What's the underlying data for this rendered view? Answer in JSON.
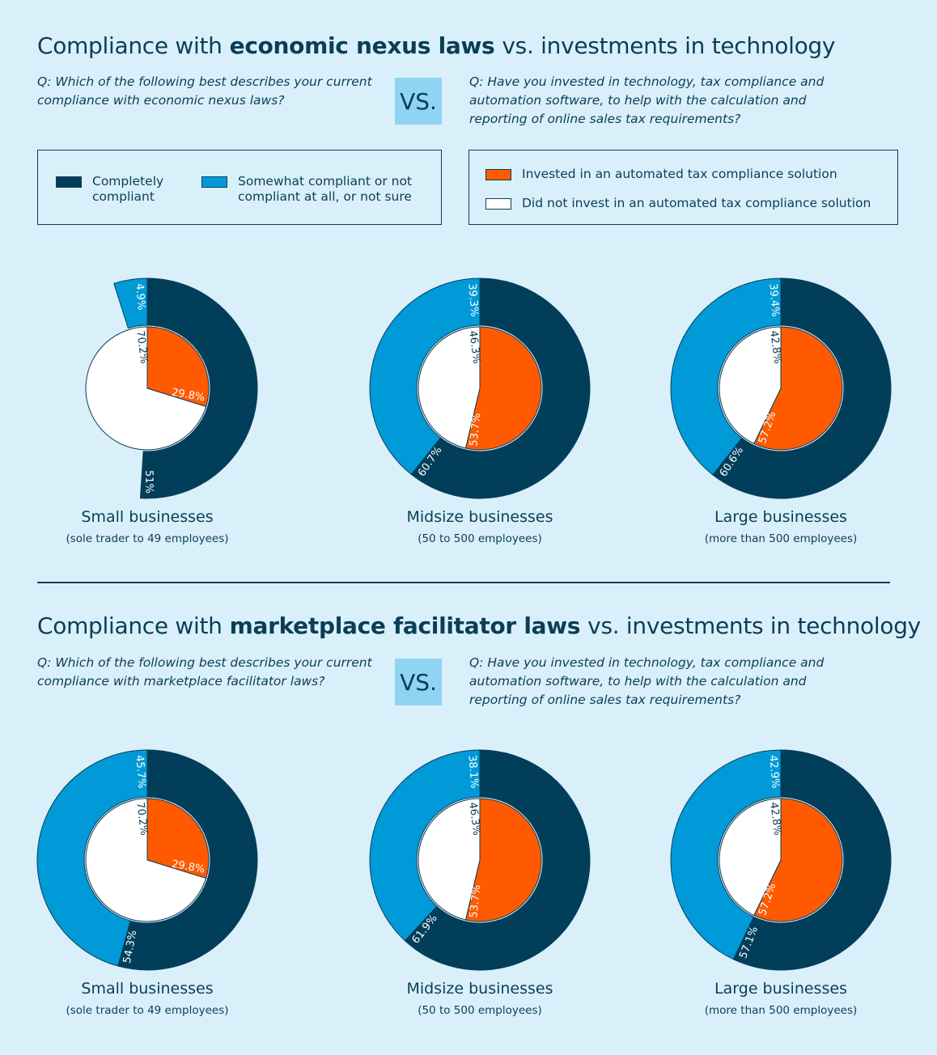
{
  "sections": [
    {
      "title": [
        "Compliance with",
        "economic nexus laws",
        "vs. investments in technology"
      ],
      "question_left": "Q: Which of the following best describes your current compliance with economic nexus laws?",
      "vs": "VS.",
      "question_right": "Q: Have you invested in technology, tax compliance and automation software, to help with the calculation and reporting of online sales tax requirements?"
    },
    {
      "title": [
        "Compliance with",
        "marketplace facilitator laws",
        "vs. investments in technology"
      ],
      "question_left": "Q: Which of the following best describes your current compliance with marketplace facilitator laws?",
      "vs": "VS.",
      "question_right": "Q: Have you invested in technology, tax compliance and automation software, to help with the calculation and reporting of online sales tax requirements?"
    }
  ],
  "legend": {
    "outer": [
      {
        "name": "Completely compliant",
        "color": "#003e5a"
      },
      {
        "name": "Somewhat compliant or not compliant at all, or not sure",
        "color": "#009ad8"
      }
    ],
    "inner": [
      {
        "name": "Invested in an automated tax compliance solution",
        "color": "#ff5a00"
      },
      {
        "name": "Did not invest in an automated tax compliance solution",
        "color": "#ffffff"
      }
    ]
  },
  "chart_data": [
    {
      "type": "donut",
      "title": "Small businesses",
      "subtitle": "(sole trader to 49 employees)",
      "outer": {
        "values": [
          51,
          4.9
        ],
        "value_labels": [
          "51%",
          "4.9%"
        ]
      },
      "inner": {
        "values": [
          29.8,
          70.2
        ],
        "value_labels": [
          "29.8%",
          "70.2%"
        ]
      }
    },
    {
      "type": "donut",
      "title": "Midsize businesses",
      "subtitle": "(50 to 500 employees)",
      "outer": {
        "values": [
          60.7,
          39.3
        ],
        "value_labels": [
          "60.7%",
          "39.3%"
        ]
      },
      "inner": {
        "values": [
          53.7,
          46.3
        ],
        "value_labels": [
          "53.7%",
          "46.3%"
        ]
      }
    },
    {
      "type": "donut",
      "title": "Large businesses",
      "subtitle": "(more than 500 employees)",
      "outer": {
        "values": [
          60.6,
          39.4
        ],
        "value_labels": [
          "60.6%",
          "39.4%"
        ]
      },
      "inner": {
        "values": [
          57.2,
          42.8
        ],
        "value_labels": [
          "57.2%",
          "42.8%"
        ]
      }
    },
    {
      "type": "donut",
      "title": "Small businesses",
      "subtitle": "(sole trader to 49 employees)",
      "outer": {
        "values": [
          54.3,
          45.7
        ],
        "value_labels": [
          "54.3%",
          "45.7%"
        ]
      },
      "inner": {
        "values": [
          29.8,
          70.2
        ],
        "value_labels": [
          "29.8%",
          "70.2%"
        ]
      }
    },
    {
      "type": "donut",
      "title": "Midsize businesses",
      "subtitle": "(50 to 500 employees)",
      "outer": {
        "values": [
          61.9,
          38.1
        ],
        "value_labels": [
          "61.9%",
          "38.1%"
        ]
      },
      "inner": {
        "values": [
          53.7,
          46.3
        ],
        "value_labels": [
          "53.7%",
          "46.3%"
        ]
      }
    },
    {
      "type": "donut",
      "title": "Large businesses",
      "subtitle": "(more than 500 employees)",
      "outer": {
        "values": [
          57.1,
          42.9
        ],
        "value_labels": [
          "57.1%",
          "42.9%"
        ]
      },
      "inner": {
        "values": [
          57.2,
          42.8
        ],
        "value_labels": [
          "57.2%",
          "42.8%"
        ]
      }
    }
  ]
}
